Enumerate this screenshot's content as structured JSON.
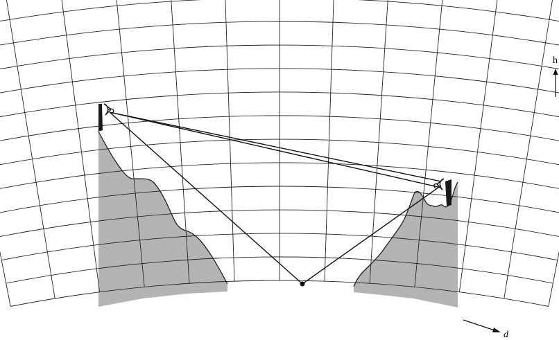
{
  "axes": {
    "vertical_label": "h",
    "horizontal_label": "d"
  },
  "colors": {
    "grid": "#222222",
    "terrain_fill": "#b4b4b4",
    "terrain_edge": "#222222",
    "tower": "#222222",
    "ray": "#111111"
  }
}
